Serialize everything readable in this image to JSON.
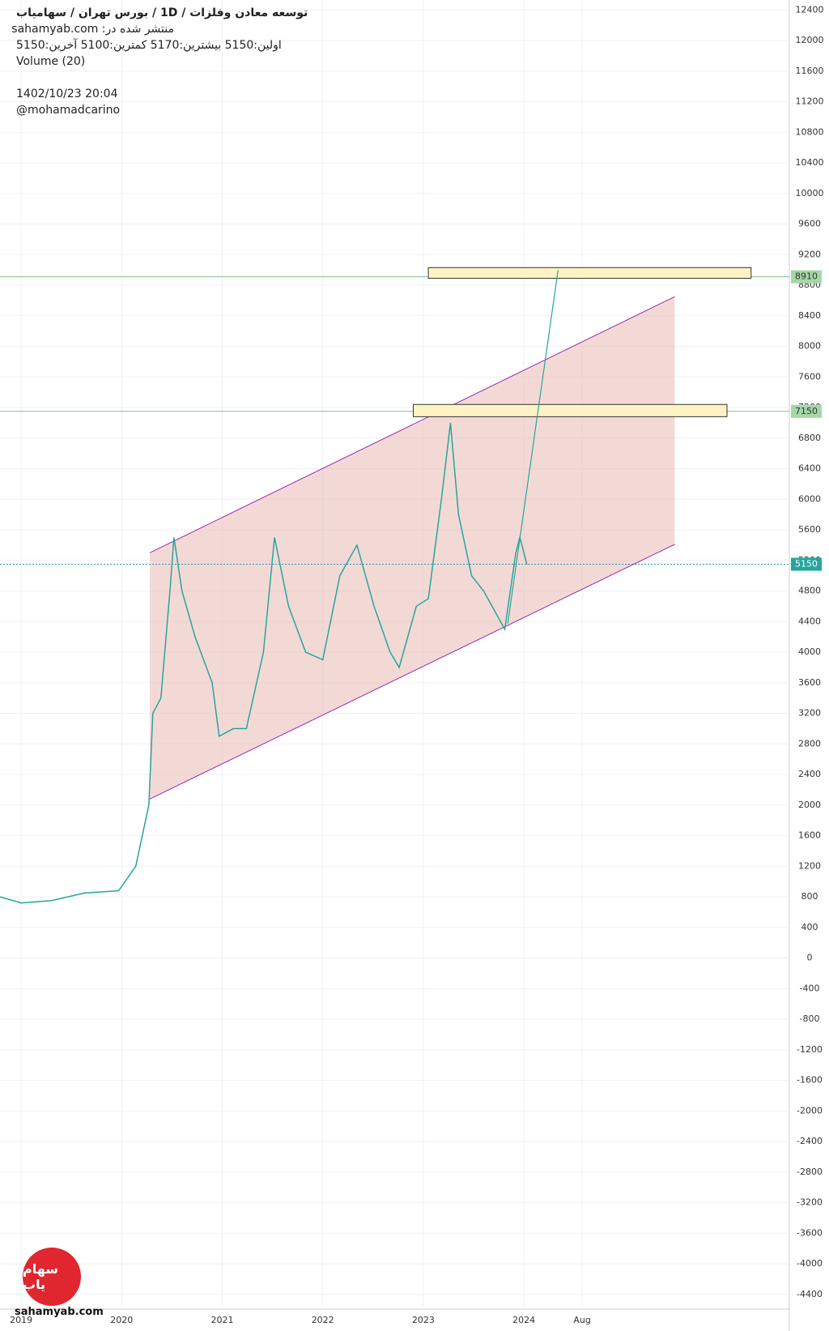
{
  "chart_data": {
    "type": "line",
    "header": {
      "title": "توسعه معادن وفلزات  /  1D  /  بورس تهران / سهامیاب",
      "published": "منتشر شده در: sahamyab.com",
      "ohlc": "اولین:5150  بیشترین:5170  کمترین:5100  آخرین:5150",
      "volume": "Volume (20)",
      "date": "1402/10/23 20:04",
      "author": "@mohamadcarino"
    },
    "watermark": "sahamyab.com",
    "logo": "سهام یاب",
    "x": [
      2018.79,
      2019.0,
      2019.3,
      2019.63,
      2019.97,
      2020.14,
      2020.27,
      2020.31,
      2020.39,
      2020.48,
      2020.52,
      2020.6,
      2020.73,
      2020.9,
      2020.97,
      2021.11,
      2021.24,
      2021.41,
      2021.52,
      2021.66,
      2021.83,
      2022.0,
      2022.17,
      2022.34,
      2022.51,
      2022.67,
      2022.76,
      2022.93,
      2023.05,
      2023.18,
      2023.27,
      2023.35,
      2023.48,
      2023.6,
      2023.81,
      2023.92,
      2023.96,
      2024.03
    ],
    "series": [
      {
        "color": "#26a69a",
        "values": [
          800,
          720,
          750,
          850,
          880,
          1200,
          2000,
          3200,
          3400,
          4800,
          5500,
          4800,
          4200,
          3600,
          2900,
          3000,
          3000,
          4000,
          5500,
          4600,
          4000,
          3900,
          5000,
          5400,
          4600,
          4000,
          3800,
          4600,
          4700,
          6000,
          7000,
          5800,
          5000,
          4800,
          4300,
          5300,
          5500,
          5150
        ]
      }
    ],
    "channel": {
      "color": "#9c27b0",
      "fill": "#e8b4ad",
      "x": [
        2020.28,
        2025.5
      ],
      "top": [
        5300,
        8650
      ],
      "bottom": [
        2080,
        5410
      ]
    },
    "forecast": {
      "color": "#26a69a",
      "x": [
        2023.84,
        2024.34
      ],
      "values": [
        4375,
        9000
      ]
    },
    "zones": [
      {
        "x": [
          2023.05,
          2026.26
        ],
        "top": 9030,
        "bottom": 8890
      },
      {
        "x": [
          2022.9,
          2026.02
        ],
        "top": 7240,
        "bottom": 7080
      }
    ],
    "levels": [
      {
        "value": 8910,
        "color": "#8fbc8f"
      },
      {
        "value": 7150,
        "color": "#8fbc8f"
      },
      {
        "value": 5150,
        "color": "#2196a3"
      }
    ],
    "xlim": [
      2018.79,
      2026.64
    ],
    "xticks": [
      {
        "value": 2019,
        "label": "2019"
      },
      {
        "value": 2020,
        "label": "2020"
      },
      {
        "value": 2021,
        "label": "2021"
      },
      {
        "value": 2022,
        "label": "2022"
      },
      {
        "value": 2023,
        "label": "2023"
      },
      {
        "value": 2024,
        "label": "2024"
      },
      {
        "value": 2024.58,
        "label": "Aug"
      }
    ],
    "ylim": [
      -4550,
      12530
    ],
    "yticks": [
      -4400,
      -4000,
      -3600,
      -3200,
      -2800,
      -2400,
      -2000,
      -1600,
      -1200,
      -800,
      -400,
      0,
      400,
      800,
      1200,
      1600,
      2000,
      2400,
      2800,
      3200,
      3600,
      4000,
      4400,
      4800,
      5200,
      5600,
      6000,
      6400,
      6800,
      7200,
      7600,
      8000,
      8400,
      8800,
      9200,
      9600,
      10000,
      10400,
      10800,
      11200,
      11600,
      12000,
      12400
    ],
    "grid": true
  }
}
